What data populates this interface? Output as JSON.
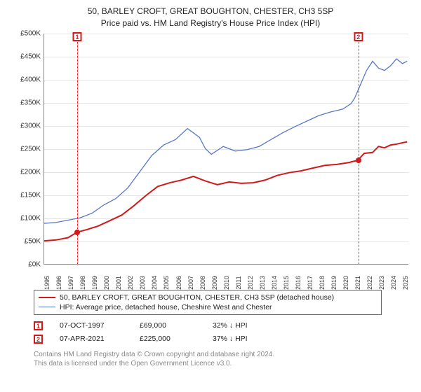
{
  "colors": {
    "series1": "#d11919",
    "series2": "#5878c8",
    "marker": "#d11919",
    "grid": "#e4e4e4",
    "axis": "#888888"
  },
  "title": {
    "line1": "50, BARLEY CROFT, GREAT BOUGHTON, CHESTER, CH3 5SP",
    "line2": "Price paid vs. HM Land Registry's House Price Index (HPI)"
  },
  "chart": {
    "type": "line",
    "xlim": [
      1995,
      2025.5
    ],
    "ylim": [
      0,
      500000
    ],
    "ytick_step": 50000,
    "yticks": [
      "£0K",
      "£50K",
      "£100K",
      "£150K",
      "£200K",
      "£250K",
      "£300K",
      "£350K",
      "£400K",
      "£450K",
      "£500K"
    ],
    "xticks": [
      1995,
      1996,
      1997,
      1998,
      1999,
      2000,
      2001,
      2002,
      2003,
      2004,
      2005,
      2006,
      2007,
      2008,
      2009,
      2010,
      2011,
      2012,
      2013,
      2014,
      2015,
      2016,
      2017,
      2018,
      2019,
      2020,
      2021,
      2022,
      2023,
      2024,
      2025
    ],
    "series": [
      {
        "name": "price-paid",
        "color_key": "series1",
        "stroke_width": 2,
        "points": [
          [
            1995,
            50000
          ],
          [
            1996,
            52000
          ],
          [
            1997,
            57000
          ],
          [
            1997.76,
            69000
          ],
          [
            1998.5,
            74000
          ],
          [
            1999.5,
            82000
          ],
          [
            2000.5,
            94000
          ],
          [
            2001.5,
            106000
          ],
          [
            2002.5,
            126000
          ],
          [
            2003.5,
            148000
          ],
          [
            2004.5,
            168000
          ],
          [
            2005.5,
            176000
          ],
          [
            2006.5,
            182000
          ],
          [
            2007.5,
            190000
          ],
          [
            2008.5,
            180000
          ],
          [
            2009.5,
            172000
          ],
          [
            2010.5,
            178000
          ],
          [
            2011.5,
            175000
          ],
          [
            2012.5,
            176000
          ],
          [
            2013.5,
            182000
          ],
          [
            2014.5,
            192000
          ],
          [
            2015.5,
            198000
          ],
          [
            2016.5,
            202000
          ],
          [
            2017.5,
            208000
          ],
          [
            2018.5,
            214000
          ],
          [
            2019.5,
            216000
          ],
          [
            2020.5,
            220000
          ],
          [
            2021.26,
            225000
          ],
          [
            2021.8,
            240000
          ],
          [
            2022.5,
            242000
          ],
          [
            2023.0,
            255000
          ],
          [
            2023.5,
            252000
          ],
          [
            2024.0,
            258000
          ],
          [
            2024.5,
            260000
          ],
          [
            2025.0,
            263000
          ],
          [
            2025.4,
            265000
          ]
        ]
      },
      {
        "name": "hpi",
        "color_key": "series2",
        "stroke_width": 1.3,
        "points": [
          [
            1995,
            88000
          ],
          [
            1996,
            90000
          ],
          [
            1997,
            95000
          ],
          [
            1998,
            100000
          ],
          [
            1999,
            110000
          ],
          [
            2000,
            128000
          ],
          [
            2001,
            142000
          ],
          [
            2002,
            165000
          ],
          [
            2003,
            200000
          ],
          [
            2004,
            235000
          ],
          [
            2005,
            258000
          ],
          [
            2006,
            270000
          ],
          [
            2007,
            294000
          ],
          [
            2008,
            275000
          ],
          [
            2008.5,
            250000
          ],
          [
            2009,
            238000
          ],
          [
            2010,
            255000
          ],
          [
            2011,
            245000
          ],
          [
            2012,
            248000
          ],
          [
            2013,
            255000
          ],
          [
            2014,
            270000
          ],
          [
            2015,
            285000
          ],
          [
            2016,
            298000
          ],
          [
            2017,
            310000
          ],
          [
            2018,
            322000
          ],
          [
            2019,
            330000
          ],
          [
            2020,
            336000
          ],
          [
            2020.7,
            348000
          ],
          [
            2021,
            360000
          ],
          [
            2021.5,
            390000
          ],
          [
            2022,
            420000
          ],
          [
            2022.5,
            440000
          ],
          [
            2023,
            425000
          ],
          [
            2023.5,
            420000
          ],
          [
            2024,
            430000
          ],
          [
            2024.5,
            445000
          ],
          [
            2025,
            435000
          ],
          [
            2025.4,
            440000
          ]
        ]
      }
    ],
    "markers": [
      {
        "n": "1",
        "x": 1997.76,
        "y": 69000
      },
      {
        "n": "2",
        "x": 2021.26,
        "y": 225000
      }
    ]
  },
  "legend": {
    "item1": "50, BARLEY CROFT, GREAT BOUGHTON, CHESTER, CH3 5SP (detached house)",
    "item2": "HPI: Average price, detached house, Cheshire West and Chester"
  },
  "sales": [
    {
      "n": "1",
      "date": "07-OCT-1997",
      "price": "£69,000",
      "delta": "32%  ↓  HPI"
    },
    {
      "n": "2",
      "date": "07-APR-2021",
      "price": "£225,000",
      "delta": "37%  ↓  HPI"
    }
  ],
  "footer": {
    "line1": "Contains HM Land Registry data © Crown copyright and database right 2024.",
    "line2": "This data is licensed under the Open Government Licence v3.0."
  }
}
